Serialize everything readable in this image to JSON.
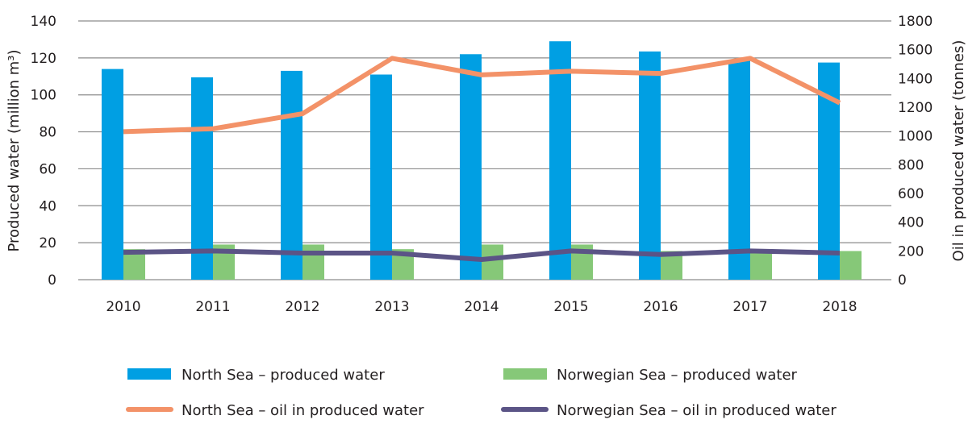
{
  "chart_data": {
    "type": "bar",
    "title": "",
    "categories": [
      "2010",
      "2011",
      "2012",
      "2013",
      "2014",
      "2015",
      "2016",
      "2017",
      "2018"
    ],
    "ylabel_left": "Produced water (million m³)",
    "ylabel_right": "Oil in produced water (tonnes)",
    "xlabel": "",
    "ylim_left": [
      0,
      140
    ],
    "yticks_left": [
      0,
      20,
      40,
      60,
      80,
      100,
      120,
      140
    ],
    "ylim_right": [
      0,
      1800
    ],
    "yticks_right": [
      0,
      200,
      400,
      600,
      800,
      1000,
      1200,
      1400,
      1600,
      1800
    ],
    "grid": true,
    "legend_position": "bottom",
    "series": [
      {
        "name": "North Sea – produced water",
        "kind": "bar",
        "axis": "left",
        "color": "#009fe3",
        "values": [
          114,
          109.5,
          113,
          111,
          122,
          129,
          123.5,
          119,
          117.5
        ]
      },
      {
        "name": "Norwegian Sea – produced water",
        "kind": "bar",
        "axis": "left",
        "color": "#86c878",
        "values": [
          16.5,
          19,
          19,
          16.5,
          19,
          19,
          15.5,
          15.5,
          15.5
        ]
      },
      {
        "name": "North Sea – oil in produced water",
        "kind": "line",
        "axis": "right",
        "color": "#f39268",
        "values": [
          1030,
          1050,
          1155,
          1540,
          1425,
          1450,
          1435,
          1540,
          1230
        ]
      },
      {
        "name": "Norwegian Sea – oil in produced water",
        "kind": "line",
        "axis": "right",
        "color": "#5b5486",
        "values": [
          190,
          200,
          185,
          185,
          140,
          200,
          175,
          200,
          185
        ]
      }
    ]
  }
}
